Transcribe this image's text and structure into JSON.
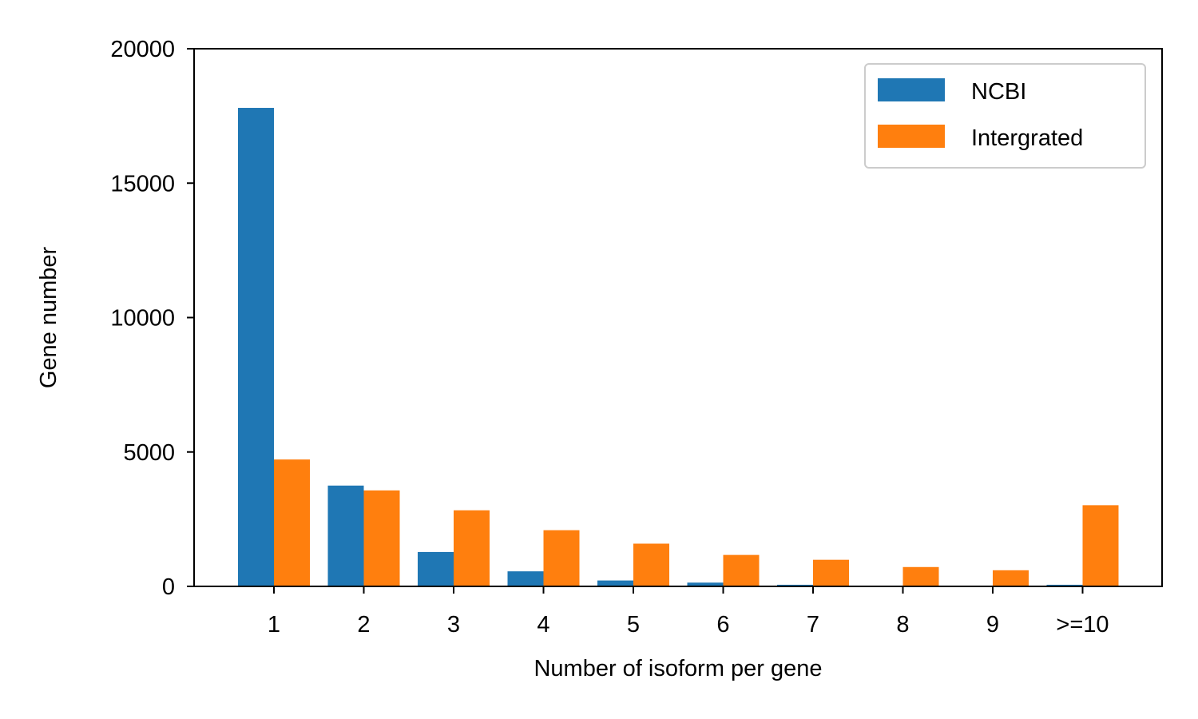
{
  "chart_data": {
    "type": "bar",
    "title": "",
    "xlabel": "Number of isoform per gene",
    "ylabel": "Gene number",
    "categories": [
      "1",
      "2",
      "3",
      "4",
      "5",
      "6",
      "7",
      "8",
      "9",
      ">=10"
    ],
    "ylim": [
      0,
      20000
    ],
    "yticks": [
      "0",
      "5000",
      "10000",
      "15000",
      "20000"
    ],
    "grid": false,
    "legend_position": "top-right",
    "series": [
      {
        "name": "NCBI",
        "color": "#1f77b4",
        "values": [
          17800,
          3750,
          1280,
          560,
          220,
          140,
          60,
          20,
          10,
          60
        ]
      },
      {
        "name": "Intergrated",
        "color": "#ff7f0e",
        "values": [
          4720,
          3570,
          2830,
          2090,
          1590,
          1170,
          990,
          720,
          600,
          3020
        ]
      }
    ]
  }
}
